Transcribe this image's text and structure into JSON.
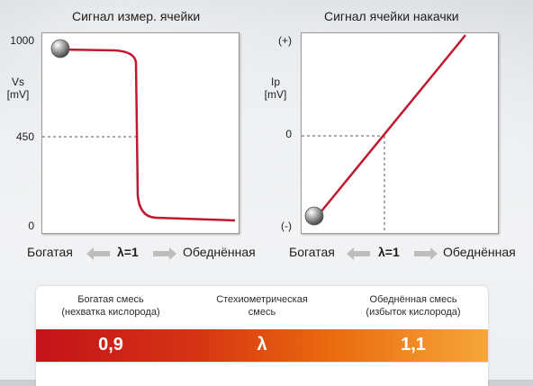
{
  "left_chart": {
    "title": "Сигнал измер. ячейки",
    "y_title_line1": "Vs",
    "y_title_line2": "[mV]",
    "y_ticks": [
      "1000",
      "450",
      "0"
    ],
    "x_left": "Богатая",
    "x_mid": "λ=1",
    "x_right": "Обеднённая"
  },
  "right_chart": {
    "title": "Сигнал ячейки накачки",
    "y_title_line1": "Ip",
    "y_title_line2": "[mV]",
    "y_ticks": [
      "(+)",
      "0",
      "(-)"
    ],
    "x_left": "Богатая",
    "x_mid": "λ=1",
    "x_right": "Обеднённая"
  },
  "legend_box": {
    "rich_line1": "Богатая смесь",
    "rich_line2": "(нехватка кислорода)",
    "stoich_line1": "Стехиометрическая",
    "stoich_line2": "смесь",
    "lean_line1": "Обеднённая смесь",
    "lean_line2": "(избыток кислорода)",
    "val_rich": "0,9",
    "val_mid": "λ",
    "val_lean": "1,1"
  },
  "colors": {
    "curve": "#c0182e",
    "bar_start": "#c4131a",
    "bar_end": "#f6a73a"
  }
}
